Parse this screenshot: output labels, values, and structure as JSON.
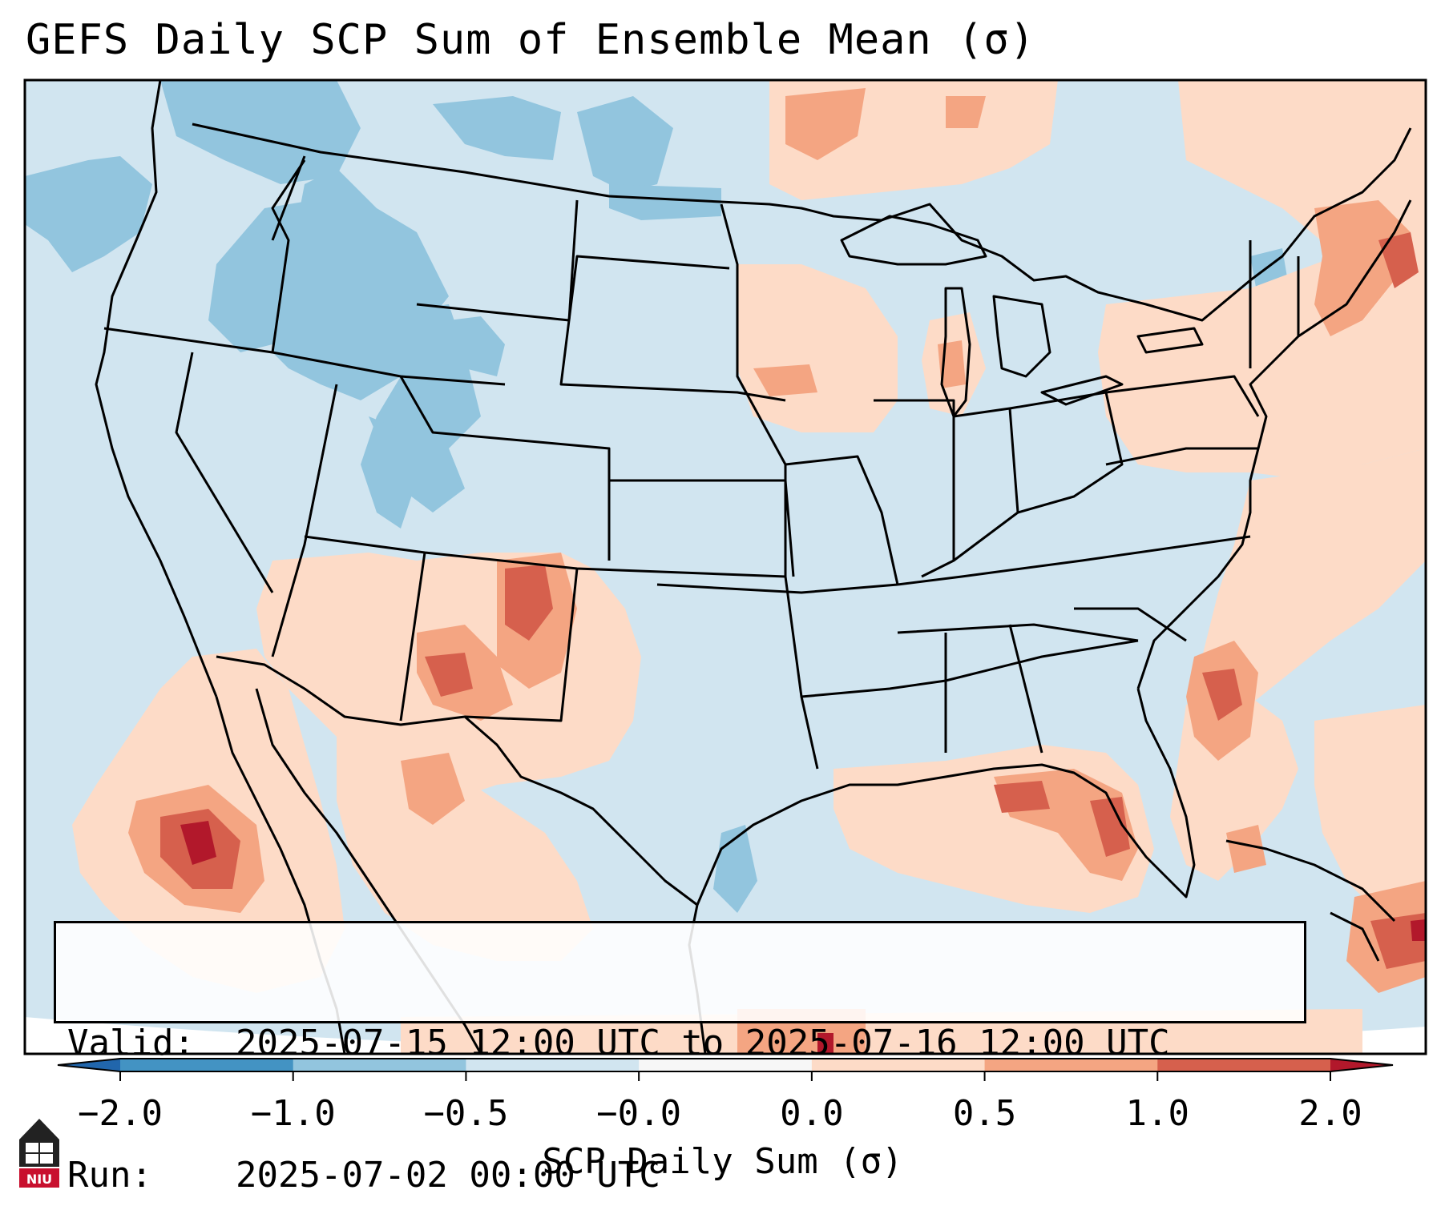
{
  "title": "GEFS Daily SCP Sum of Ensemble Mean (σ)",
  "info": {
    "valid_label": "Valid:",
    "valid_value": "2025-07-15 12:00 UTC to 2025-07-16 12:00 UTC",
    "run_label": "Run:",
    "run_value": "2025-07-02 00:00 UTC"
  },
  "colorbar": {
    "label": "SCP Daily Sum (σ)",
    "ticks": [
      "−2.0",
      "−1.0",
      "−0.5",
      "−0.0",
      "0.0",
      "0.5",
      "1.0",
      "2.0"
    ],
    "bins": [
      {
        "color": "#4393c3"
      },
      {
        "color": "#92c5de"
      },
      {
        "color": "#d1e5f0"
      },
      {
        "color": "#f7f7f7"
      },
      {
        "color": "#fddbc7"
      },
      {
        "color": "#f4a582"
      },
      {
        "color": "#d6604d"
      }
    ],
    "extend_low_color": "#2166ac",
    "extend_high_color": "#b2182b"
  },
  "colors": {
    "background_field": "#d1e5f0",
    "weak_positive": "#fddbc7",
    "moderate_positive": "#f4a582",
    "strong_positive": "#d6604d",
    "very_strong_positive": "#b2182b",
    "weak_negative": "#92c5de",
    "boundary": "#000000"
  },
  "logo": {
    "text": "NIU",
    "name": "niu-logo"
  }
}
